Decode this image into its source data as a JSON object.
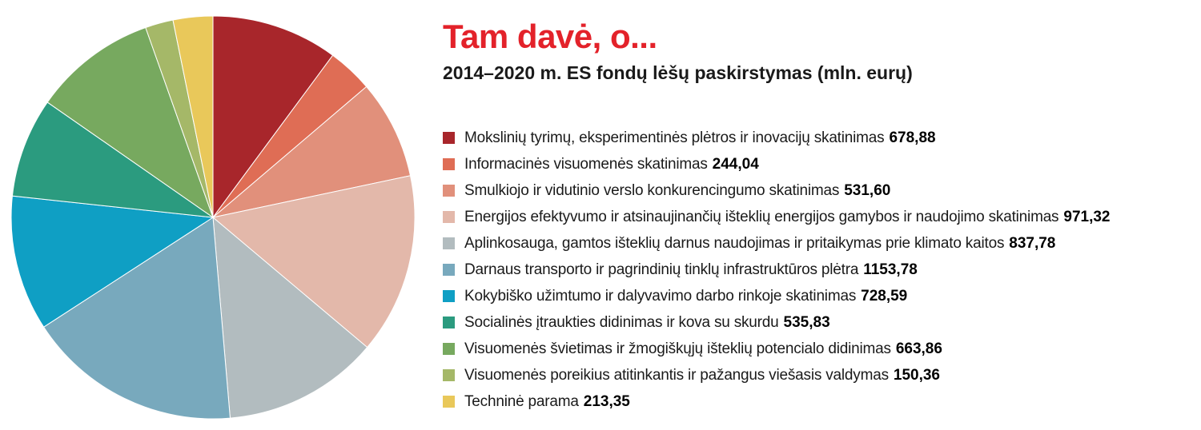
{
  "title": "Tam davė, o...",
  "subtitle": "2014–2020 m. ES fondų lėšų paskirstymas (mln. eurų)",
  "chart_data": {
    "type": "pie",
    "title": "Tam davė, o...",
    "subtitle": "2014–2020 m. ES fondų lėšų paskirstymas (mln. eurų)",
    "legend_placement": "right",
    "start": "top, clockwise",
    "slices": [
      {
        "label": "Mokslinių tyrimų, eksperimentinės plėtros ir inovacijų skatinimas",
        "value": 678.88,
        "value_text": "678,88",
        "color": "#a8262b"
      },
      {
        "label": "Informacinės visuomenės skatinimas",
        "value": 244.04,
        "value_text": "244,04",
        "color": "#df6d55"
      },
      {
        "label": "Smulkiojo ir vidutinio verslo konkurencingumo skatinimas",
        "value": 531.6,
        "value_text": "531,60",
        "color": "#e1907b"
      },
      {
        "label": "Energijos efektyvumo ir atsinaujinančių išteklių energijos gamybos ir naudojimo skatinimas",
        "value": 971.32,
        "value_text": "971,32",
        "color": "#e3b8aa"
      },
      {
        "label": "Aplinkosauga, gamtos išteklių darnus naudojimas ir pritaikymas prie klimato kaitos",
        "value": 837.78,
        "value_text": "837,78",
        "color": "#b2bcbf"
      },
      {
        "label": "Darnaus transporto ir pagrindinių tinklų infrastruktūros plėtra",
        "value": 1153.78,
        "value_text": "1153,78",
        "color": "#78a9bd"
      },
      {
        "label": "Kokybiško užimtumo ir dalyvavimo darbo rinkoje skatinimas",
        "value": 728.59,
        "value_text": "728,59",
        "color": "#0f9fc4"
      },
      {
        "label": "Socialinės įtraukties didinimas ir kova su skurdu",
        "value": 535.83,
        "value_text": "535,83",
        "color": "#2b9b7f"
      },
      {
        "label": "Visuomenės švietimas ir žmogiškųjų išteklių potencialo didinimas",
        "value": 663.86,
        "value_text": "663,86",
        "color": "#77a95f"
      },
      {
        "label": "Visuomenės poreikius atitinkantis ir pažangus viešasis valdymas",
        "value": 150.36,
        "value_text": "150,36",
        "color": "#a5b868"
      },
      {
        "label": "Techninė parama",
        "value": 213.35,
        "value_text": "213,35",
        "color": "#e9c85a"
      }
    ]
  }
}
